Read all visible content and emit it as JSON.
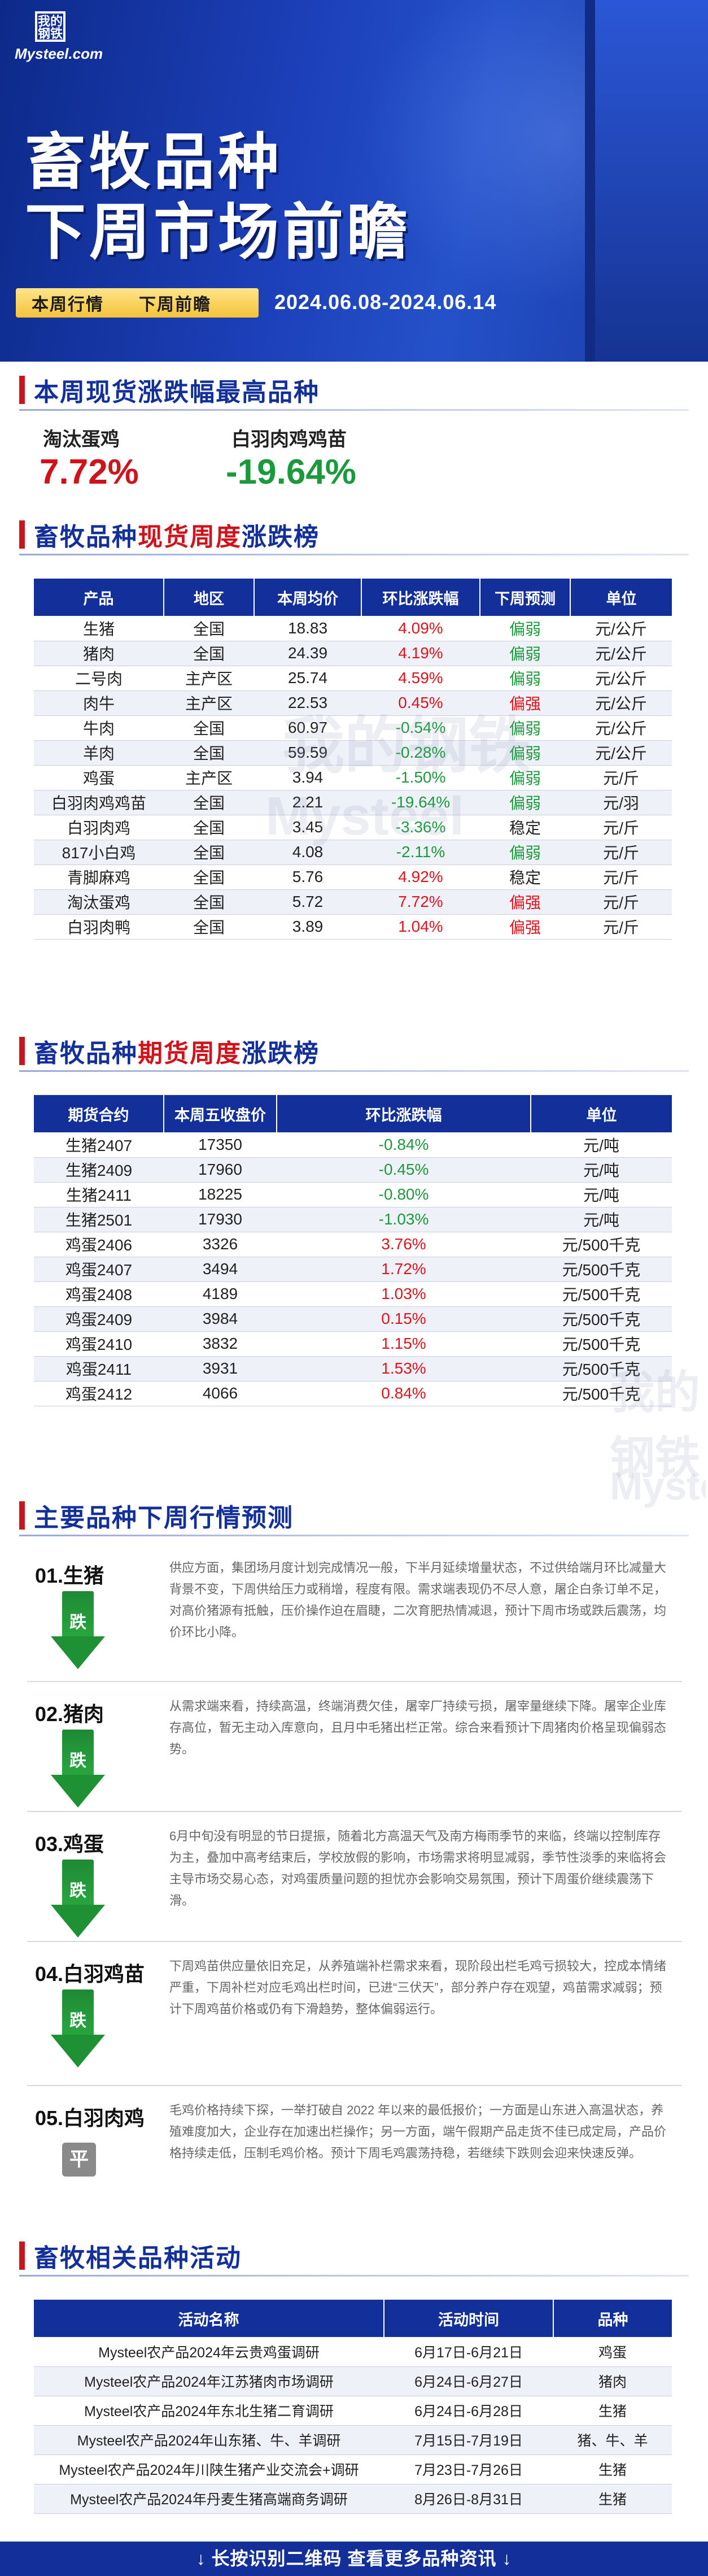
{
  "header": {
    "logo_mark": "我的钢铁",
    "logo_text": "Mysteel.com",
    "title_line1": "畜牧品种",
    "title_line2": "下周市场前瞻",
    "tag_current": "本周行情",
    "tag_next": "下周前瞻",
    "date_range": "2024.06.08-2024.06.14"
  },
  "top_gainers": {
    "title": "本周现货涨跌幅最高品种",
    "items": [
      {
        "name": "淘汰蛋鸡",
        "value": "7.72%",
        "color": "#d0121b"
      },
      {
        "name": "白羽肉鸡鸡苗",
        "value": "-19.64%",
        "color": "#1b9a3d"
      }
    ]
  },
  "spot_table": {
    "title_a": "畜牧品种",
    "title_b": "现货周度",
    "title_c": "涨跌榜",
    "headers": [
      "产品",
      "地区",
      "本周均价",
      "环比涨跌幅",
      "下周预测",
      "单位"
    ],
    "rows": [
      [
        "生猪",
        "全国",
        "18.83",
        "4.09%",
        "偏弱",
        "元/公斤"
      ],
      [
        "猪肉",
        "全国",
        "24.39",
        "4.19%",
        "偏弱",
        "元/公斤"
      ],
      [
        "二号肉",
        "主产区",
        "25.74",
        "4.59%",
        "偏弱",
        "元/公斤"
      ],
      [
        "肉牛",
        "主产区",
        "22.53",
        "0.45%",
        "偏强",
        "元/公斤"
      ],
      [
        "牛肉",
        "全国",
        "60.97",
        "-0.54%",
        "偏弱",
        "元/公斤"
      ],
      [
        "羊肉",
        "全国",
        "59.59",
        "-0.28%",
        "偏弱",
        "元/公斤"
      ],
      [
        "鸡蛋",
        "主产区",
        "3.94",
        "-1.50%",
        "偏弱",
        "元/斤"
      ],
      [
        "白羽肉鸡鸡苗",
        "全国",
        "2.21",
        "-19.64%",
        "偏弱",
        "元/羽"
      ],
      [
        "白羽肉鸡",
        "全国",
        "3.45",
        "-3.36%",
        "稳定",
        "元/斤"
      ],
      [
        "817小白鸡",
        "全国",
        "4.08",
        "-2.11%",
        "偏弱",
        "元/斤"
      ],
      [
        "青脚麻鸡",
        "全国",
        "5.76",
        "4.92%",
        "稳定",
        "元/斤"
      ],
      [
        "淘汰蛋鸡",
        "全国",
        "5.72",
        "7.72%",
        "偏强",
        "元/斤"
      ],
      [
        "白羽肉鸭",
        "全国",
        "3.89",
        "1.04%",
        "偏强",
        "元/斤"
      ]
    ]
  },
  "futures_table": {
    "title_a": "畜牧品种",
    "title_b": "期货周度",
    "title_c": "涨跌榜",
    "headers": [
      "期货合约",
      "本周五收盘价",
      "环比涨跌幅",
      "单位"
    ],
    "rows": [
      [
        "生猪2407",
        "17350",
        "-0.84%",
        "元/吨"
      ],
      [
        "生猪2409",
        "17960",
        "-0.45%",
        "元/吨"
      ],
      [
        "生猪2411",
        "18225",
        "-0.80%",
        "元/吨"
      ],
      [
        "生猪2501",
        "17930",
        "-1.03%",
        "元/吨"
      ],
      [
        "鸡蛋2406",
        "3326",
        "3.76%",
        "元/500千克"
      ],
      [
        "鸡蛋2407",
        "3494",
        "1.72%",
        "元/500千克"
      ],
      [
        "鸡蛋2408",
        "4189",
        "1.03%",
        "元/500千克"
      ],
      [
        "鸡蛋2409",
        "3984",
        "0.15%",
        "元/500千克"
      ],
      [
        "鸡蛋2410",
        "3832",
        "1.15%",
        "元/500千克"
      ],
      [
        "鸡蛋2411",
        "3931",
        "1.53%",
        "元/500千克"
      ],
      [
        "鸡蛋2412",
        "4066",
        "0.84%",
        "元/500千克"
      ]
    ]
  },
  "forecast": {
    "title": "主要品种下周行情预测",
    "items": [
      {
        "name": "01.生猪",
        "signal": "跌",
        "text": "供应方面，集团场月度计划完成情况一般，下半月延续增量状态，不过供给端月环比减量大背景不变，下周供给压力或稍增，程度有限。需求端表现仍不尽人意，屠企白条订单不足，对高价猪源有抵触，压价操作迫在眉睫，二次育肥热情减退，预计下周市场或跌后震荡，均价环比小降。"
      },
      {
        "name": "02.猪肉",
        "signal": "跌",
        "text": "从需求端来看，持续高温，终端消费欠佳，屠宰厂持续亏损，屠宰量继续下降。屠宰企业库存高位，暂无主动入库意向，且月中毛猪出栏正常。综合来看预计下周猪肉价格呈现偏弱态势。"
      },
      {
        "name": "03.鸡蛋",
        "signal": "跌",
        "text": "6月中旬没有明显的节日提振，随着北方高温天气及南方梅雨季节的来临，终端以控制库存为主，叠加中高考结束后，学校放假的影响，市场需求将明显减弱，季节性淡季的来临将会主导市场交易心态，对鸡蛋质量问题的担忧亦会影响交易氛围，预计下周蛋价继续震荡下滑。"
      },
      {
        "name": "04.白羽鸡苗",
        "signal": "跌",
        "text": "下周鸡苗供应量依旧充足，从养殖端补栏需求来看，现阶段出栏毛鸡亏损较大，控成本情绪严重，下周补栏对应毛鸡出栏时间，已进“三伏天”，部分养户存在观望，鸡苗需求减弱；预计下周鸡苗价格或仍有下滑趋势，整体偏弱运行。"
      },
      {
        "name": "05.白羽肉鸡",
        "signal": "平",
        "text": "毛鸡价格持续下探，一举打破自 2022 年以来的最低报价；一方面是山东进入高温状态，养殖难度加大，企业存在加速出栏操作；另一方面，端午假期产品走货不佳已成定局，产品价格持续走低，压制毛鸡价格。预计下周毛鸡震荡持稳，若继续下跌则会迎来快速反弹。"
      }
    ]
  },
  "activities": {
    "title": "畜牧相关品种活动",
    "headers": [
      "活动名称",
      "活动时间",
      "品种"
    ],
    "rows": [
      [
        "Mysteel农产品2024年云贵鸡蛋调研",
        "6月17日-6月21日",
        "鸡蛋"
      ],
      [
        "Mysteel农产品2024年江苏猪肉市场调研",
        "6月24日-6月27日",
        "猪肉"
      ],
      [
        "Mysteel农产品2024年东北生猪二育调研",
        "6月24日-6月28日",
        "生猪"
      ],
      [
        "Mysteel农产品2024年山东猪、牛、羊调研",
        "7月15日-7月19日",
        "猪、牛、羊"
      ],
      [
        "Mysteel农产品2024年川陕生猪产业交流会+调研",
        "7月23日-7月26日",
        "生猪"
      ],
      [
        "Mysteel农产品2024年丹麦生猪高端商务调研",
        "8月26日-8月31日",
        "生猪"
      ]
    ]
  },
  "footer": {
    "text": "↓ 长按识别二维码  查看更多品种资讯 ↓"
  },
  "watermark": {
    "mark": "我的钢铁",
    "text": "Mysteel"
  }
}
